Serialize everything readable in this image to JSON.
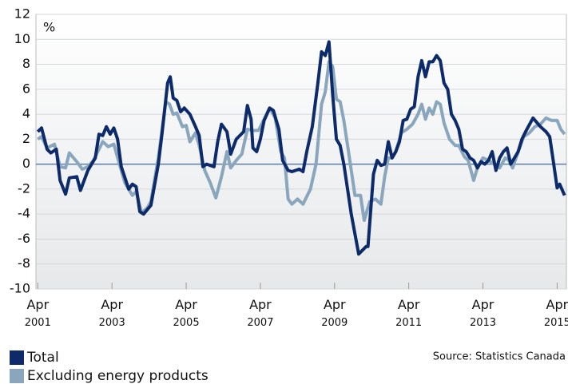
{
  "chart_data": {
    "type": "line",
    "y_label": "%",
    "source": "Source: Statistics Canada",
    "xlim": [
      2001.2,
      2015.5
    ],
    "xticks": [
      {
        "value": 2001.25,
        "label": "Apr 2001"
      },
      {
        "value": 2003.25,
        "label": "Apr 2003"
      },
      {
        "value": 2005.25,
        "label": "Apr 2005"
      },
      {
        "value": 2007.25,
        "label": "Apr 2007"
      },
      {
        "value": 2009.25,
        "label": "Apr 2009"
      },
      {
        "value": 2011.25,
        "label": "Apr 2011"
      },
      {
        "value": 2013.25,
        "label": "Apr 2013"
      },
      {
        "value": 2015.25,
        "label": "Apr 2015"
      }
    ],
    "ylim": [
      -10,
      12
    ],
    "yticks": [
      -10,
      -8,
      -6,
      -4,
      -2,
      0,
      2,
      4,
      6,
      8,
      10,
      12
    ],
    "grid": true,
    "series": [
      {
        "name": "Total",
        "color": "#0d2b6b",
        "x": [
          2001.25,
          2001.35,
          2001.5,
          2001.6,
          2001.75,
          2001.85,
          2002.0,
          2002.1,
          2002.3,
          2002.4,
          2002.6,
          2002.8,
          2002.9,
          2003.0,
          2003.1,
          2003.2,
          2003.3,
          2003.4,
          2003.5,
          2003.7,
          2003.8,
          2003.9,
          2004.0,
          2004.1,
          2004.3,
          2004.5,
          2004.6,
          2004.75,
          2004.82,
          2004.9,
          2005.0,
          2005.1,
          2005.2,
          2005.35,
          2005.5,
          2005.6,
          2005.7,
          2005.8,
          2006.0,
          2006.1,
          2006.2,
          2006.35,
          2006.45,
          2006.6,
          2006.8,
          2006.9,
          2007.0,
          2007.05,
          2007.15,
          2007.25,
          2007.35,
          2007.5,
          2007.6,
          2007.75,
          2007.85,
          2008.0,
          2008.1,
          2008.3,
          2008.4,
          2008.5,
          2008.65,
          2008.8,
          2008.9,
          2009.0,
          2009.1,
          2009.2,
          2009.3,
          2009.4,
          2009.5,
          2009.7,
          2009.9,
          2010.1,
          2010.15,
          2010.3,
          2010.4,
          2010.5,
          2010.6,
          2010.7,
          2010.8,
          2010.9,
          2011.0,
          2011.1,
          2011.2,
          2011.3,
          2011.4,
          2011.5,
          2011.6,
          2011.7,
          2011.8,
          2011.9,
          2012.0,
          2012.1,
          2012.2,
          2012.3,
          2012.4,
          2012.5,
          2012.6,
          2012.7,
          2012.8,
          2012.9,
          2013.0,
          2013.1,
          2013.2,
          2013.3,
          2013.4,
          2013.5,
          2013.6,
          2013.7,
          2013.8,
          2013.9,
          2014.0,
          2014.1,
          2014.2,
          2014.3,
          2014.4,
          2014.6,
          2014.8,
          2014.95,
          2015.05,
          2015.15,
          2015.25,
          2015.32,
          2015.45
        ],
        "values": [
          2.6,
          2.9,
          1.2,
          0.9,
          1.2,
          -1.3,
          -2.4,
          -1.1,
          -1.0,
          -2.1,
          -0.5,
          0.5,
          2.4,
          2.3,
          3.0,
          2.4,
          2.9,
          2.0,
          -0.2,
          -2.0,
          -1.6,
          -1.8,
          -3.8,
          -4.0,
          -3.3,
          0.0,
          2.5,
          6.5,
          7.0,
          5.3,
          5.1,
          4.2,
          4.5,
          4.0,
          3.0,
          2.3,
          -0.2,
          0.0,
          -0.2,
          1.8,
          3.2,
          2.6,
          0.8,
          2.0,
          2.6,
          4.7,
          3.6,
          1.3,
          1.0,
          2.0,
          3.5,
          4.5,
          4.3,
          2.8,
          0.3,
          -0.5,
          -0.6,
          -0.4,
          -0.6,
          1.0,
          3.0,
          6.5,
          9.0,
          8.7,
          9.8,
          5.5,
          2.0,
          1.5,
          0.0,
          -4.0,
          -7.2,
          -6.6,
          -6.6,
          -0.8,
          0.3,
          -0.1,
          0.0,
          1.8,
          0.5,
          1.0,
          1.8,
          3.5,
          3.6,
          4.4,
          4.6,
          7.0,
          8.3,
          7.0,
          8.2,
          8.2,
          8.7,
          8.3,
          6.5,
          6.0,
          4.0,
          3.5,
          2.8,
          1.2,
          1.0,
          0.5,
          0.3,
          -0.3,
          0.2,
          0.0,
          0.3,
          1.0,
          -0.5,
          0.5,
          1.0,
          1.3,
          0.0,
          0.5,
          1.0,
          2.0,
          2.6,
          3.7,
          3.0,
          2.6,
          2.2,
          0.2,
          -1.9,
          -1.6,
          -2.5
        ]
      },
      {
        "name": "Excluding energy products",
        "color": "#8aa6bd",
        "x": [
          2001.25,
          2001.35,
          2001.5,
          2001.7,
          2001.85,
          2002.0,
          2002.1,
          2002.3,
          2002.45,
          2002.6,
          2002.75,
          2002.9,
          2003.0,
          2003.15,
          2003.3,
          2003.45,
          2003.6,
          2003.8,
          2003.9,
          2004.05,
          2004.2,
          2004.3,
          2004.5,
          2004.7,
          2004.8,
          2004.9,
          2005.0,
          2005.15,
          2005.25,
          2005.35,
          2005.5,
          2005.6,
          2005.75,
          2005.9,
          2006.05,
          2006.2,
          2006.35,
          2006.45,
          2006.6,
          2006.75,
          2006.9,
          2007.05,
          2007.2,
          2007.35,
          2007.5,
          2007.65,
          2007.8,
          2007.9,
          2008.0,
          2008.1,
          2008.25,
          2008.4,
          2008.6,
          2008.75,
          2008.9,
          2009.0,
          2009.1,
          2009.2,
          2009.3,
          2009.4,
          2009.5,
          2009.65,
          2009.8,
          2009.95,
          2010.05,
          2010.2,
          2010.35,
          2010.5,
          2010.6,
          2010.7,
          2010.8,
          2010.9,
          2011.05,
          2011.2,
          2011.35,
          2011.5,
          2011.6,
          2011.7,
          2011.8,
          2011.9,
          2012.0,
          2012.1,
          2012.2,
          2012.35,
          2012.5,
          2012.6,
          2012.75,
          2012.85,
          2013.0,
          2013.1,
          2013.25,
          2013.4,
          2013.55,
          2013.7,
          2013.85,
          2013.95,
          2014.05,
          2014.2,
          2014.35,
          2014.5,
          2014.65,
          2014.8,
          2014.95,
          2015.1,
          2015.25,
          2015.35,
          2015.45
        ],
        "values": [
          2.0,
          2.2,
          1.3,
          1.6,
          -0.2,
          -0.3,
          0.9,
          0.2,
          -0.4,
          -0.2,
          0.3,
          1.2,
          1.8,
          1.4,
          1.6,
          0.0,
          -1.5,
          -2.5,
          -2.2,
          -3.9,
          -3.5,
          -3.0,
          0.5,
          5.0,
          4.8,
          4.0,
          4.1,
          3.0,
          3.1,
          1.8,
          2.5,
          1.5,
          -0.5,
          -1.5,
          -2.7,
          -1.0,
          1.0,
          -0.3,
          0.3,
          0.8,
          2.8,
          2.7,
          2.7,
          3.6,
          4.5,
          3.7,
          1.0,
          0.5,
          -2.8,
          -3.2,
          -2.8,
          -3.2,
          -2.0,
          0.0,
          4.8,
          5.8,
          8.2,
          7.8,
          5.2,
          5.0,
          3.5,
          0.5,
          -2.5,
          -2.5,
          -4.5,
          -3.0,
          -2.8,
          -3.2,
          -1.0,
          0.5,
          0.5,
          1.0,
          2.5,
          2.8,
          3.2,
          4.0,
          4.8,
          3.6,
          4.5,
          4.0,
          5.0,
          4.8,
          3.3,
          2.0,
          1.5,
          1.5,
          0.6,
          0.3,
          -1.3,
          -0.3,
          0.5,
          0.3,
          0.0,
          -0.3,
          0.5,
          0.3,
          -0.3,
          1.0,
          2.2,
          2.5,
          3.0,
          3.2,
          3.7,
          3.5,
          3.5,
          2.8,
          2.4
        ]
      }
    ]
  }
}
